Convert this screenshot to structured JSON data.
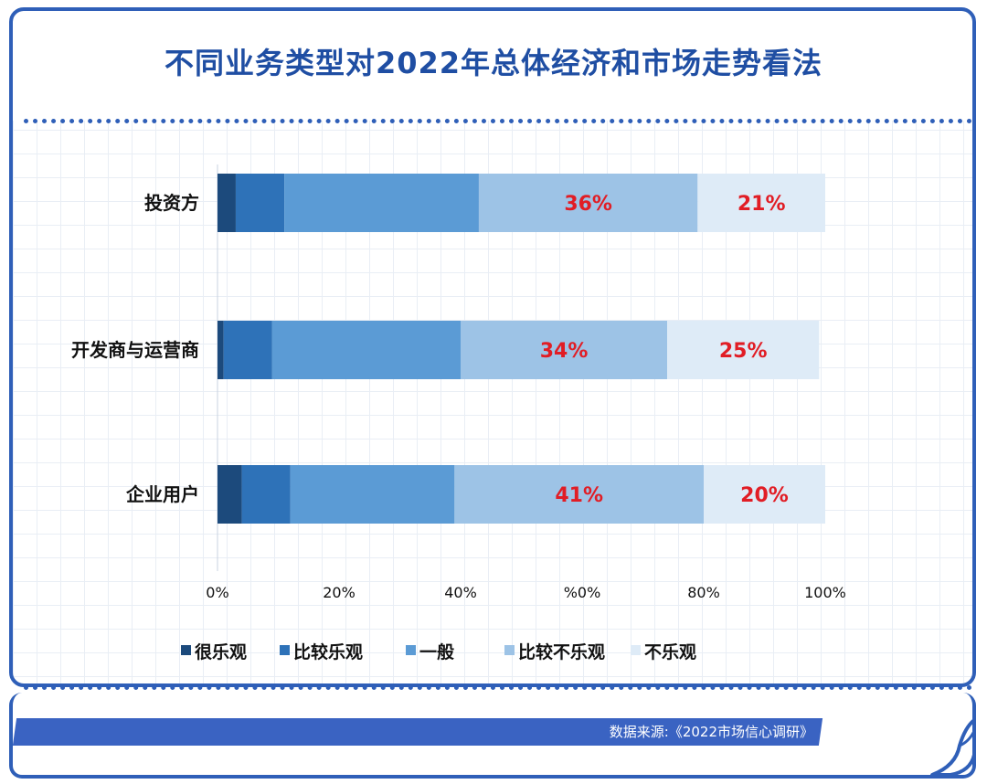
{
  "title": "不同业务类型对2022年总体经济和市场走势看法",
  "source": "数据来源:《2022市场信心调研》",
  "chart_data": {
    "type": "bar",
    "orientation": "horizontal",
    "stacked": true,
    "categories": [
      "投资方",
      "开发商与运营商",
      "企业用户"
    ],
    "series": [
      {
        "name": "很乐观",
        "color": "#1c4a7c",
        "values": [
          3,
          1,
          4
        ]
      },
      {
        "name": "比较乐观",
        "color": "#2e72b8",
        "values": [
          8,
          8,
          8
        ]
      },
      {
        "name": "一般",
        "color": "#5b9bd5",
        "values": [
          32,
          31,
          27
        ]
      },
      {
        "name": "比较不乐观",
        "color": "#9dc3e6",
        "values": [
          36,
          34,
          41
        ]
      },
      {
        "name": "不乐观",
        "color": "#deebf7",
        "values": [
          21,
          25,
          20
        ]
      }
    ],
    "data_labels": [
      {
        "category": "投资方",
        "series": "比较不乐观",
        "text": "36%"
      },
      {
        "category": "投资方",
        "series": "不乐观",
        "text": "21%"
      },
      {
        "category": "开发商与运营商",
        "series": "比较不乐观",
        "text": "34%"
      },
      {
        "category": "开发商与运营商",
        "series": "不乐观",
        "text": "25%"
      },
      {
        "category": "企业用户",
        "series": "比较不乐观",
        "text": "41%"
      },
      {
        "category": "企业用户",
        "series": "不乐观",
        "text": "20%"
      }
    ],
    "x_ticks": [
      "0%",
      "20%",
      "40%",
      "%0%",
      "80%",
      "100%"
    ],
    "xlim": [
      0,
      100
    ],
    "legend_position": "bottom"
  }
}
